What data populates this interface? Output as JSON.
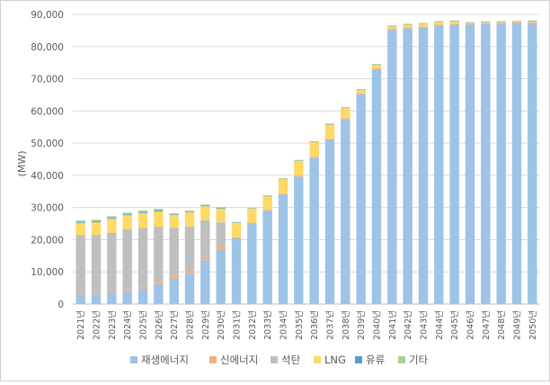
{
  "chart_data": {
    "type": "bar",
    "stacked": true,
    "ylabel": "(MW)",
    "ylim": [
      0,
      90000
    ],
    "yticks": [
      0,
      10000,
      20000,
      30000,
      40000,
      50000,
      60000,
      70000,
      80000,
      90000
    ],
    "ytick_labels": [
      "0",
      "10,000",
      "20,000",
      "30,000",
      "40,000",
      "50,000",
      "60,000",
      "70,000",
      "80,000",
      "90,000"
    ],
    "grid": true,
    "legend_position": "bottom",
    "categories": [
      "2021년",
      "2022년",
      "2023년",
      "2024년",
      "2025년",
      "2026년",
      "2027년",
      "2028년",
      "2029년",
      "2030년",
      "2031년",
      "2032년",
      "2033년",
      "2034년",
      "2035년",
      "2036년",
      "2037년",
      "2038년",
      "2039년",
      "2040년",
      "2041년",
      "2042년",
      "2043년",
      "2044년",
      "2045년",
      "2046년",
      "2047년",
      "2048년",
      "2049년",
      "2050년"
    ],
    "series": [
      {
        "name": "재생에너지",
        "color": "#9dc3e6",
        "values": [
          2800,
          3000,
          3500,
          4200,
          4800,
          6200,
          8000,
          9600,
          13600,
          16800,
          20400,
          25000,
          29000,
          34000,
          39600,
          45500,
          51000,
          57500,
          65200,
          73000,
          85200,
          85700,
          85900,
          86500,
          86800,
          86800,
          87000,
          87100,
          87200,
          87300
        ]
      },
      {
        "name": "신에너지",
        "color": "#f4b183",
        "values": [
          200,
          300,
          400,
          500,
          600,
          700,
          800,
          900,
          1000,
          1200,
          300,
          300,
          300,
          300,
          300,
          300,
          300,
          300,
          300,
          300,
          300,
          300,
          300,
          300,
          300,
          300,
          300,
          300,
          300,
          300
        ]
      },
      {
        "name": "석탄",
        "color": "#bfbfbf",
        "values": [
          18500,
          18200,
          18300,
          18500,
          18200,
          17100,
          14900,
          13600,
          11400,
          7400,
          0,
          0,
          0,
          0,
          0,
          0,
          0,
          0,
          0,
          0,
          0,
          0,
          0,
          0,
          0,
          0,
          0,
          0,
          0,
          0
        ]
      },
      {
        "name": "LNG",
        "color": "#ffd966",
        "values": [
          3700,
          3900,
          4300,
          4400,
          4700,
          4800,
          4000,
          4400,
          4400,
          4200,
          4500,
          4300,
          4200,
          4500,
          4600,
          4500,
          4500,
          3100,
          1000,
          1000,
          800,
          800,
          800,
          800,
          700,
          200,
          200,
          200,
          200,
          200
        ]
      },
      {
        "name": "유류",
        "color": "#5b9bd5",
        "values": [
          300,
          300,
          300,
          300,
          300,
          300,
          200,
          200,
          200,
          200,
          100,
          100,
          100,
          100,
          100,
          100,
          100,
          100,
          100,
          100,
          100,
          100,
          100,
          100,
          100,
          100,
          100,
          100,
          100,
          100
        ]
      },
      {
        "name": "기타",
        "color": "#a9d18e",
        "values": [
          500,
          500,
          500,
          500,
          500,
          500,
          300,
          300,
          300,
          300,
          200,
          200,
          200,
          200,
          200,
          200,
          200,
          200,
          200,
          200,
          200,
          200,
          200,
          200,
          200,
          200,
          200,
          200,
          200,
          200
        ]
      }
    ]
  }
}
